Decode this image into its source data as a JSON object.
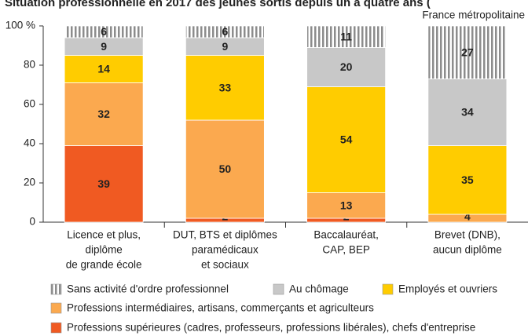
{
  "chart_data": {
    "type": "stacked-bar",
    "title": "Situation professionnelle en 2017 des jeunes sortis depuis un à quatre ans (",
    "subtitle": "France métropolitaine",
    "categories": [
      [
        "Licence et plus,",
        "diplôme",
        "de grande école"
      ],
      [
        "DUT, BTS et diplômes",
        "paramédicaux",
        "et sociaux"
      ],
      [
        "Baccalauréat,",
        "CAP, BEP"
      ],
      [
        "Brevet (DNB),",
        "aucun diplôme"
      ]
    ],
    "series": [
      {
        "name": "Sans activité d'ordre professionnel",
        "color": "#8c8c8c",
        "pattern": "vertical-stripes",
        "values": [
          6,
          6,
          11,
          27
        ]
      },
      {
        "name": "Au chômage",
        "color": "#c8c8c8",
        "values": [
          9,
          9,
          20,
          34
        ]
      },
      {
        "name": "Employés et ouvriers",
        "color": "#ffcc00",
        "values": [
          14,
          33,
          54,
          35
        ]
      },
      {
        "name": "Professions intermédiaires, artisans, commerçants et agriculteurs",
        "color": "#fba94f",
        "values": [
          32,
          50,
          13,
          4
        ]
      },
      {
        "name": "Professions supérieures (cadres, professeurs, professions libérales), chefs d'entreprise",
        "color": "#f05a22",
        "values": [
          39,
          2,
          2,
          0
        ]
      }
    ],
    "ylim": [
      0,
      100
    ],
    "yticks": [
      0,
      20,
      40,
      60,
      80,
      {
        "value": 100,
        "label": "100 %"
      }
    ]
  }
}
